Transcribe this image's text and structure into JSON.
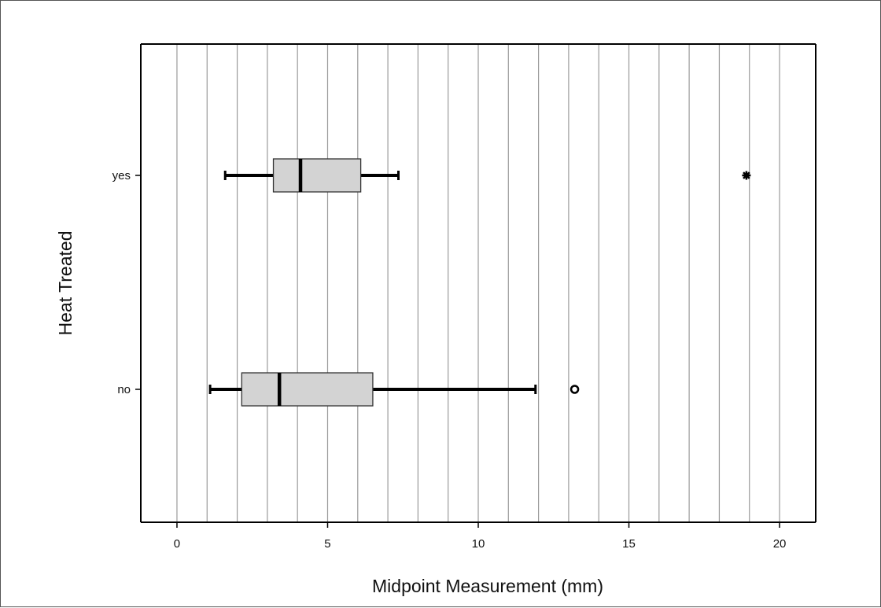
{
  "chart_data": {
    "type": "boxplot",
    "orientation": "horizontal",
    "xlabel": "Midpoint Measurement (mm)",
    "ylabel": "Heat Treated",
    "xlim": [
      -1.2,
      21.2
    ],
    "x_ticks": [
      0,
      5,
      10,
      15,
      20
    ],
    "x_tick_labels": [
      "0",
      "5",
      "10",
      "15",
      "20"
    ],
    "x_gridlines": [
      0,
      1,
      2,
      3,
      4,
      5,
      6,
      7,
      8,
      9,
      10,
      11,
      12,
      13,
      14,
      15,
      16,
      17,
      18,
      19,
      20
    ],
    "grid": "vertical",
    "categories": [
      "yes",
      "no"
    ],
    "boxes": [
      {
        "category": "yes",
        "whisker_low": 1.6,
        "q1": 3.2,
        "median": 4.1,
        "q3": 6.1,
        "whisker_high": 7.35,
        "outliers": [
          {
            "value": 18.9,
            "marker": "star"
          }
        ]
      },
      {
        "category": "no",
        "whisker_low": 1.1,
        "q1": 2.15,
        "median": 3.4,
        "q3": 6.5,
        "whisker_high": 11.9,
        "outliers": [
          {
            "value": 13.2,
            "marker": "circle"
          }
        ]
      }
    ],
    "colors": {
      "box_fill": "#d3d3d3",
      "box_stroke": "#333333",
      "grid": "#9a9a9a",
      "lines": "#000000"
    }
  }
}
